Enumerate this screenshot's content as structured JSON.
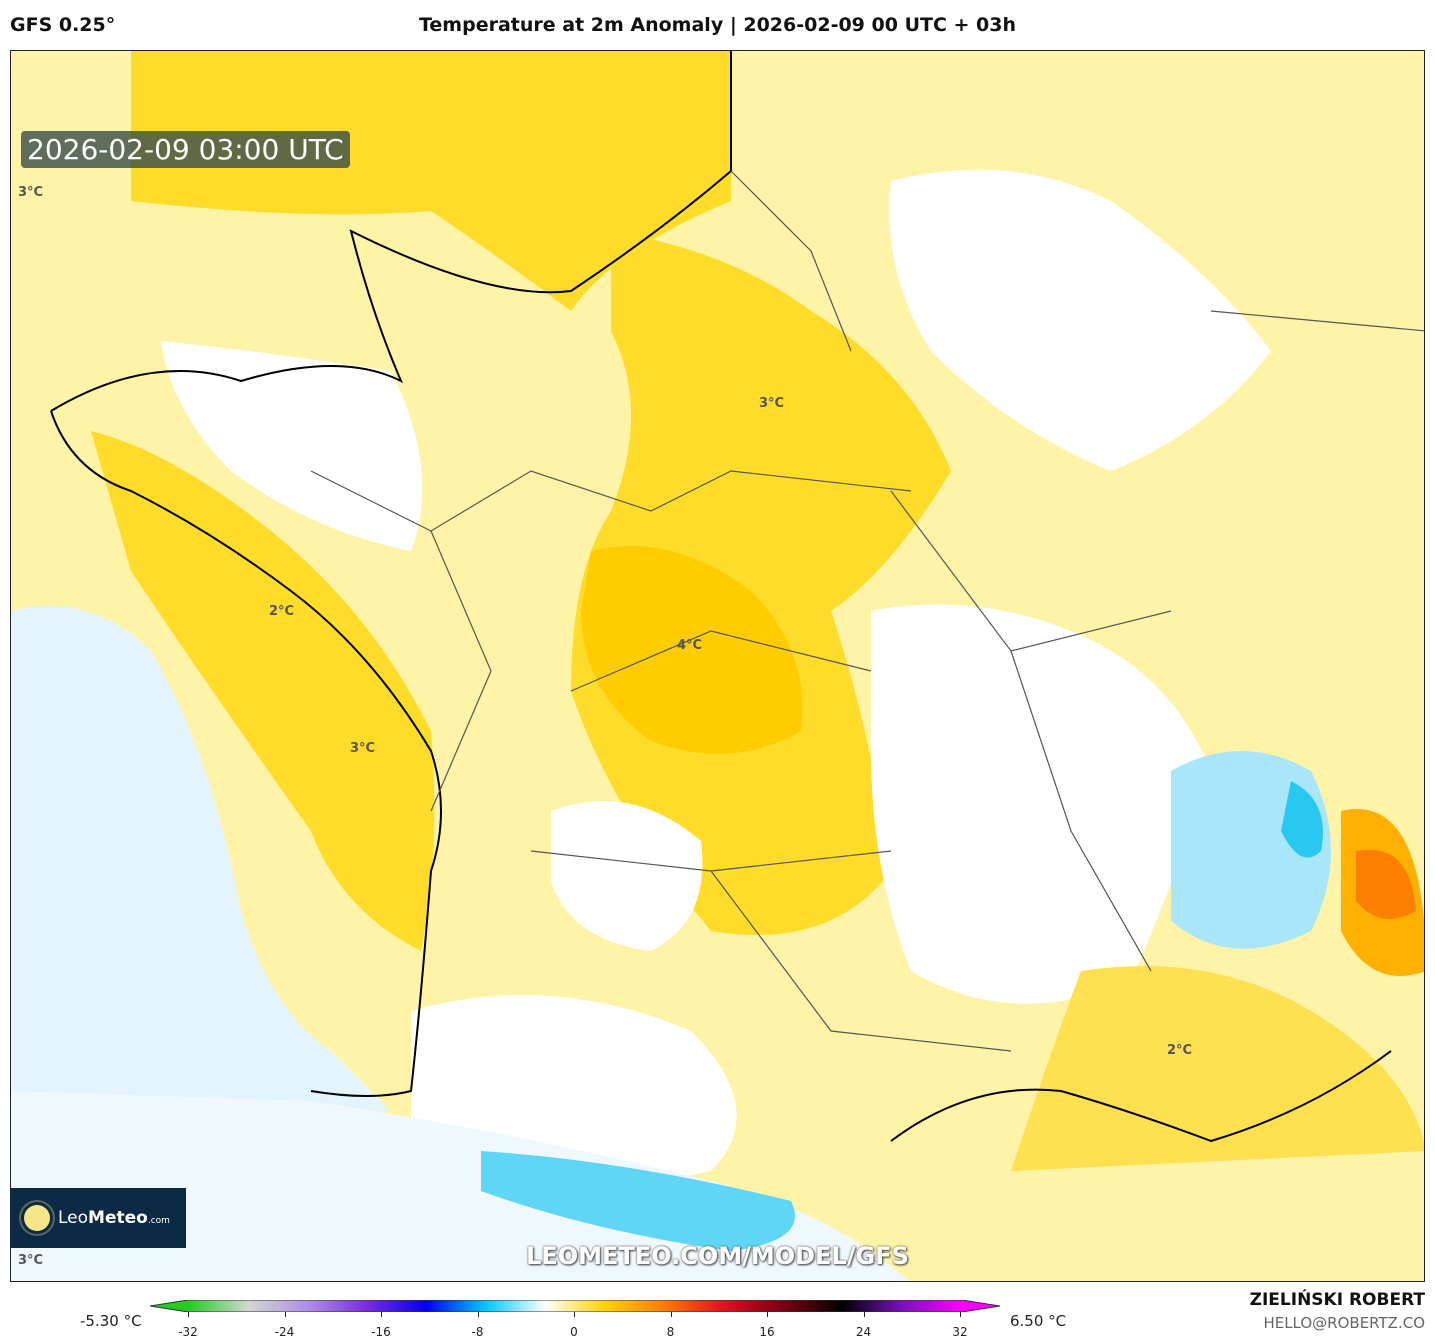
{
  "header": {
    "model": "GFS 0.25°",
    "title": "Temperature at 2m Anomaly | 2026-02-09 00 UTC + 03h"
  },
  "map": {
    "valid_time": "2026-02-09 03:00 UTC",
    "contour_labels": [
      "3°C",
      "3°C",
      "4°C",
      "2°C",
      "3°C",
      "2°C",
      "3°C"
    ],
    "watermark": "LEOMETEO.COM/MODEL/GFS",
    "logo": {
      "part1": "Leo",
      "part2": "Meteo",
      "part3": ".com"
    }
  },
  "colorbar": {
    "min_label": "-5.30 °C",
    "max_label": "6.50 °C",
    "ticks": [
      "-32",
      "-24",
      "-16",
      "-8",
      "0",
      "8",
      "16",
      "24",
      "32"
    ],
    "colors": [
      "#22cc22",
      "#cfd8cf",
      "#b090e8",
      "#7b2be0",
      "#0000ee",
      "#00c8ff",
      "#ffffff",
      "#ffd400",
      "#ff7a00",
      "#e01020",
      "#7a0010",
      "#000000",
      "#7a10c0",
      "#ff00ff"
    ]
  },
  "footer": {
    "author": "ZIELIŃSKI ROBERT",
    "email": "HELLO@ROBERTZ.CO"
  }
}
